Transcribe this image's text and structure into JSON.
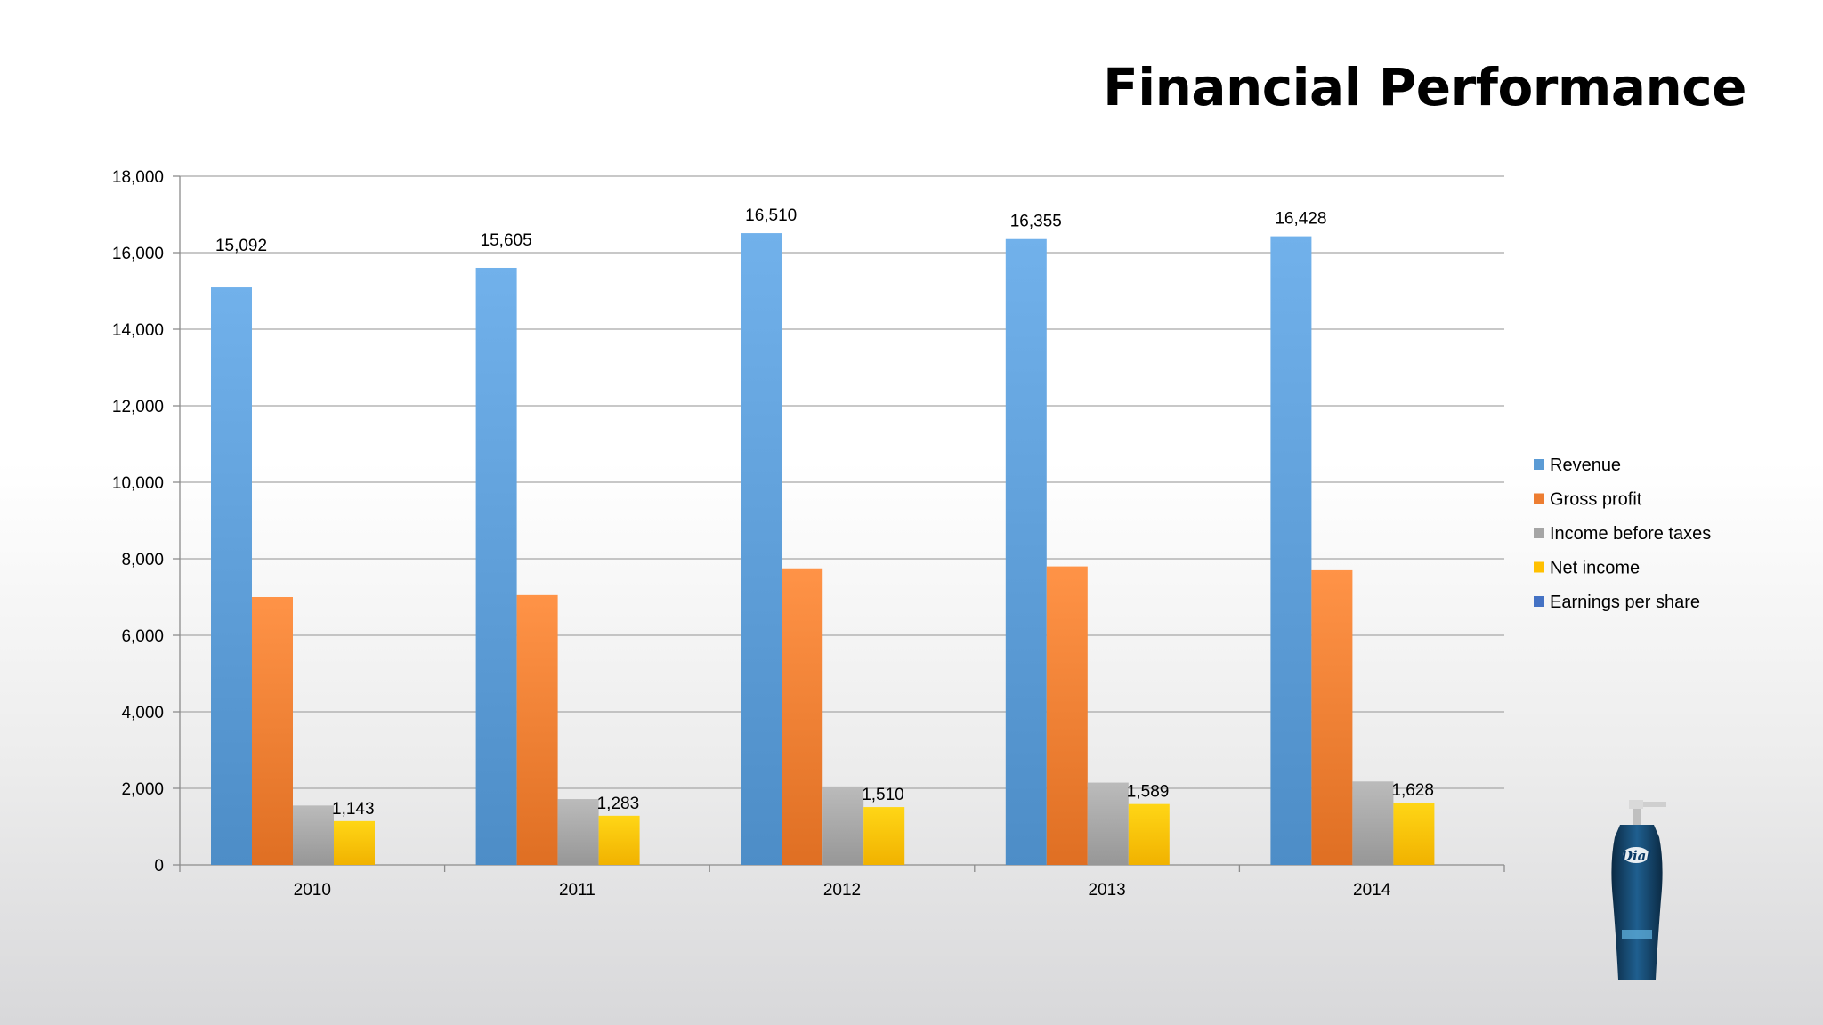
{
  "slide": {
    "title": "Financial Performance"
  },
  "chart_data": {
    "type": "bar",
    "title": "",
    "xlabel": "",
    "ylabel": "",
    "categories": [
      "2010",
      "2011",
      "2012",
      "2013",
      "2014"
    ],
    "ylim": [
      0,
      18000
    ],
    "yticks": [
      0,
      2000,
      4000,
      6000,
      8000,
      10000,
      12000,
      14000,
      16000,
      18000
    ],
    "ytick_labels": [
      "0",
      "2,000",
      "4,000",
      "6,000",
      "8,000",
      "10,000",
      "12,000",
      "14,000",
      "16,000",
      "18,000"
    ],
    "grid": true,
    "legend_position": "right",
    "series": [
      {
        "name": "Revenue",
        "color": "#5b9bd5",
        "values": [
          15092,
          15605,
          16510,
          16355,
          16428
        ],
        "labels": [
          "15,092",
          "15,605",
          "16,510",
          "16,355",
          "16,428"
        ]
      },
      {
        "name": "Gross profit",
        "color": "#ed7d31",
        "values": [
          7000,
          7050,
          7750,
          7800,
          7700
        ],
        "labels": []
      },
      {
        "name": "Income before taxes",
        "color": "#a5a5a5",
        "values": [
          1550,
          1720,
          2050,
          2150,
          2180
        ],
        "labels": []
      },
      {
        "name": "Net income",
        "color": "#ffc000",
        "values": [
          1143,
          1283,
          1510,
          1589,
          1628
        ],
        "labels": [
          "1,143",
          "1,283",
          "1,510",
          "1,589",
          "1,628"
        ]
      },
      {
        "name": "Earnings per share",
        "color": "#4472c4",
        "values": [
          0,
          0,
          0,
          0,
          0
        ],
        "labels": []
      }
    ]
  },
  "product_image": {
    "icon": "soap-bottle-icon",
    "brand_text": "Dial"
  }
}
